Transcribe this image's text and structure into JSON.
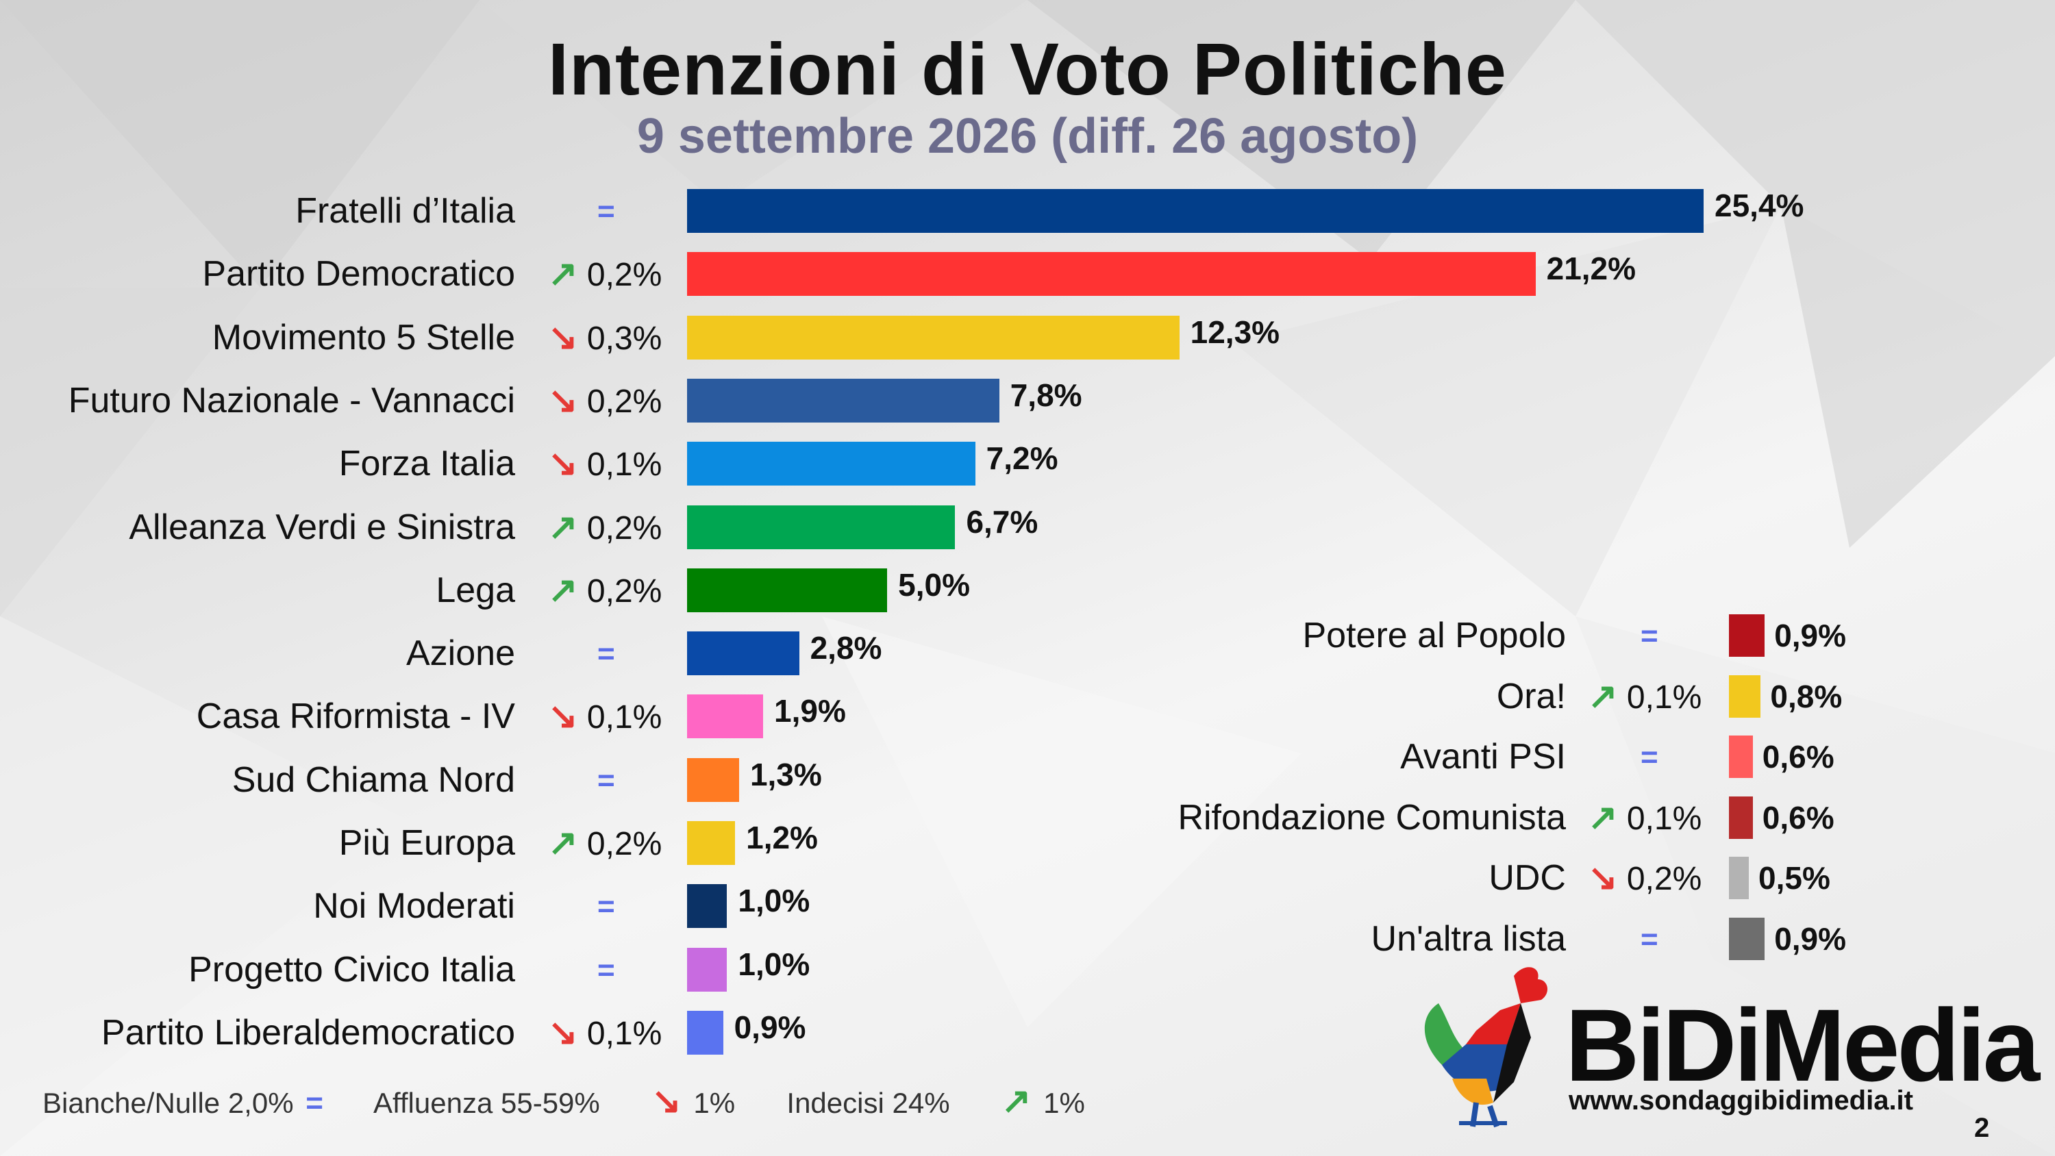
{
  "title": "Intenzioni di Voto Politiche",
  "subtitle": "9 settembre 2026 (diff. 26 agosto)",
  "colors": {
    "up": "#3aa64a",
    "down": "#e53935",
    "equal": "#5b6ee8"
  },
  "chart_data": {
    "type": "bar",
    "orientation": "horizontal",
    "categories": [
      "Fratelli d’Italia",
      "Partito Democratico",
      "Movimento 5 Stelle",
      "Futuro Nazionale - Vannacci",
      "Forza Italia",
      "Alleanza Verdi e Sinistra",
      "Lega",
      "Azione",
      "Casa Riformista - IV",
      "Sud Chiama Nord",
      "Più Europa",
      "Noi Moderati",
      "Progetto Civico Italia",
      "Partito Liberaldemocratico"
    ],
    "values": [
      25.4,
      21.2,
      12.3,
      7.8,
      7.2,
      6.7,
      5.0,
      2.8,
      1.9,
      1.3,
      1.2,
      1.0,
      1.0,
      0.9
    ],
    "value_labels": [
      "25,4%",
      "21,2%",
      "12,3%",
      "7,8%",
      "7,2%",
      "6,7%",
      "5,0%",
      "2,8%",
      "1,9%",
      "1,3%",
      "1,2%",
      "1,0%",
      "1,0%",
      "0,9%"
    ],
    "colors": [
      "#023e8a",
      "#ff3333",
      "#f2c81e",
      "#2a5a9e",
      "#0b8be0",
      "#00a651",
      "#008000",
      "#0a4aa8",
      "#ff66c4",
      "#ff7a22",
      "#f2c81e",
      "#0b3266",
      "#c86be0",
      "#5a73f0"
    ],
    "changes": [
      {
        "dir": "equal",
        "text": ""
      },
      {
        "dir": "up",
        "text": "0,2%"
      },
      {
        "dir": "down",
        "text": "0,3%"
      },
      {
        "dir": "down",
        "text": "0,2%"
      },
      {
        "dir": "down",
        "text": "0,1%"
      },
      {
        "dir": "up",
        "text": "0,2%"
      },
      {
        "dir": "up",
        "text": "0,2%"
      },
      {
        "dir": "equal",
        "text": ""
      },
      {
        "dir": "down",
        "text": "0,1%"
      },
      {
        "dir": "equal",
        "text": ""
      },
      {
        "dir": "up",
        "text": "0,2%"
      },
      {
        "dir": "equal",
        "text": ""
      },
      {
        "dir": "equal",
        "text": ""
      },
      {
        "dir": "down",
        "text": "0,1%"
      }
    ],
    "minor": {
      "categories": [
        "Potere al Popolo",
        "Ora!",
        "Avanti PSI",
        "Rifondazione Comunista",
        "UDC",
        "Un'altra lista"
      ],
      "values": [
        0.9,
        0.8,
        0.6,
        0.6,
        0.5,
        0.9
      ],
      "value_labels": [
        "0,9%",
        "0,8%",
        "0,6%",
        "0,6%",
        "0,5%",
        "0,9%"
      ],
      "colors": [
        "#b5121b",
        "#f2c81e",
        "#ff5c5c",
        "#b52a2a",
        "#b3b3b3",
        "#6e6e6e"
      ],
      "changes": [
        {
          "dir": "equal",
          "text": ""
        },
        {
          "dir": "up",
          "text": "0,1%"
        },
        {
          "dir": "equal",
          "text": ""
        },
        {
          "dir": "up",
          "text": "0,1%"
        },
        {
          "dir": "down",
          "text": "0,2%"
        },
        {
          "dir": "equal",
          "text": ""
        }
      ]
    }
  },
  "footer": {
    "bianche_label": "Bianche/Nulle 2,0%",
    "bianche_dir": "equal",
    "affluenza_label": "Affluenza 55-59%",
    "affluenza_change": "1%",
    "affluenza_dir": "down",
    "indecisi_label": "Indecisi 24%",
    "indecisi_change": "1%",
    "indecisi_dir": "up"
  },
  "logo": {
    "name": "BiDiMedia",
    "url": "www.sondaggibidimedia.it"
  },
  "page_number": "2"
}
